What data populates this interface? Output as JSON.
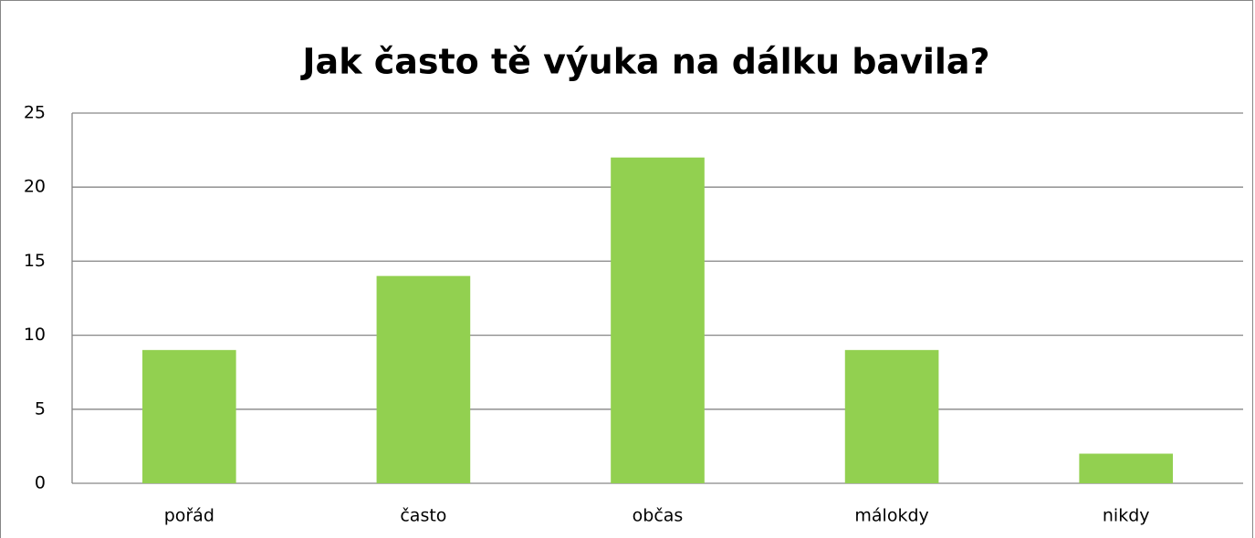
{
  "chart_data": {
    "type": "bar",
    "title": "Jak často tě výuka na dálku bavila?",
    "categories": [
      "pořád",
      "často",
      "občas",
      "málokdy",
      "nikdy"
    ],
    "values": [
      9,
      14,
      22,
      9,
      2
    ],
    "color": "#92d050",
    "ylim": [
      0,
      25
    ],
    "yticks": [
      0,
      5,
      10,
      15,
      20,
      25
    ],
    "grid": true
  }
}
